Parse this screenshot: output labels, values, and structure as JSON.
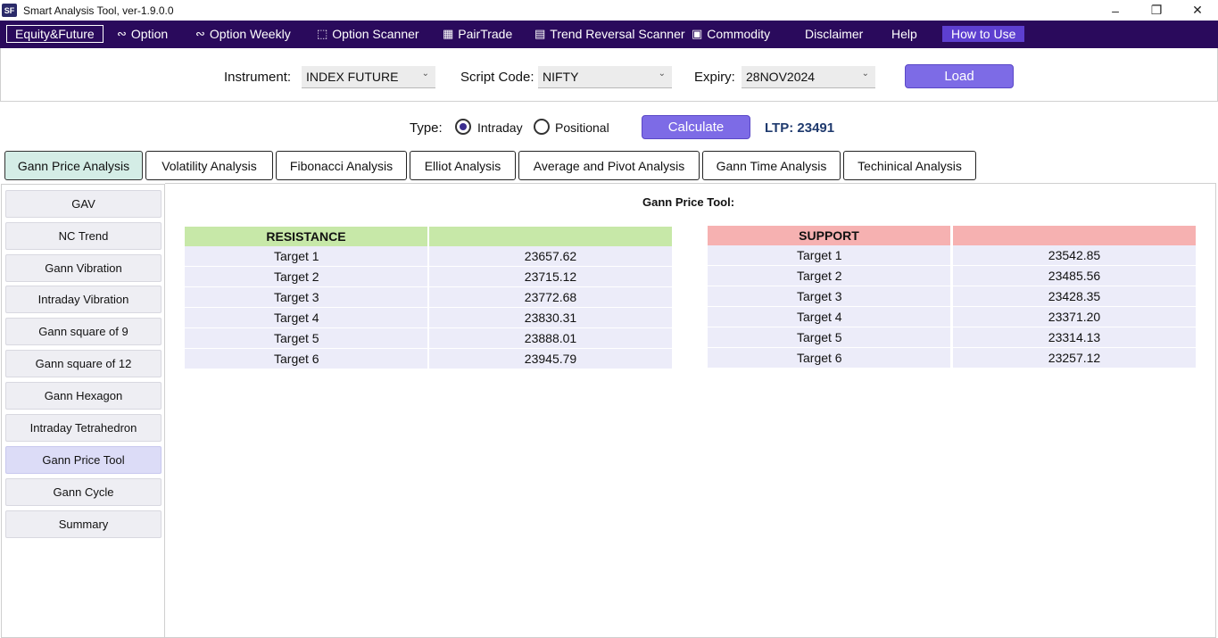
{
  "window": {
    "logo": "SF",
    "title": "Smart Analysis Tool, ver-1.9.0.0"
  },
  "menu": [
    {
      "label": "Equity&Future",
      "icon": ""
    },
    {
      "label": "Option",
      "icon": "chart-icon"
    },
    {
      "label": "Option Weekly",
      "icon": "chart-icon"
    },
    {
      "label": "Option Scanner",
      "icon": "scanner-icon"
    },
    {
      "label": "PairTrade",
      "icon": "pair-icon"
    },
    {
      "label": "Trend Reversal Scanner",
      "icon": "document-icon"
    },
    {
      "label": "Commodity",
      "icon": "fuel-icon"
    },
    {
      "label": "Disclaimer",
      "icon": ""
    },
    {
      "label": "Help",
      "icon": ""
    },
    {
      "label": "How to Use",
      "icon": ""
    }
  ],
  "instrument": {
    "label": "Instrument:",
    "value": "INDEX FUTURE",
    "script_label": "Script Code:",
    "script_value": "NIFTY",
    "expiry_label": "Expiry:",
    "expiry_value": "28NOV2024",
    "load_label": "Load"
  },
  "type_row": {
    "label": "Type:",
    "intraday": "Intraday",
    "positional": "Positional",
    "selected": "Intraday",
    "calculate_label": "Calculate",
    "ltp": "LTP: 23491"
  },
  "tabs": [
    "Gann Price Analysis",
    "Volatility Analysis",
    "Fibonacci Analysis",
    "Elliot Analysis",
    "Average and Pivot Analysis",
    "Gann Time Analysis",
    "Techinical Analysis"
  ],
  "side_items": [
    "GAV",
    "NC Trend",
    "Gann Vibration",
    "Intraday Vibration",
    "Gann square of 9",
    "Gann square of 12",
    "Gann Hexagon",
    "Intraday Tetrahedron",
    "Gann Price Tool",
    "Gann Cycle",
    "Summary"
  ],
  "main": {
    "title": "Gann Price Tool:",
    "resistance": {
      "header": "RESISTANCE",
      "header2": "",
      "rows": [
        {
          "label": "Target 1",
          "value": "23657.62"
        },
        {
          "label": "Target 2",
          "value": "23715.12"
        },
        {
          "label": "Target 3",
          "value": "23772.68"
        },
        {
          "label": "Target 4",
          "value": "23830.31"
        },
        {
          "label": "Target 5",
          "value": "23888.01"
        },
        {
          "label": "Target 6",
          "value": "23945.79"
        }
      ]
    },
    "support": {
      "header": "SUPPORT",
      "header2": "",
      "rows": [
        {
          "label": "Target 1",
          "value": "23542.85"
        },
        {
          "label": "Target 2",
          "value": "23485.56"
        },
        {
          "label": "Target 3",
          "value": "23428.35"
        },
        {
          "label": "Target 4",
          "value": "23371.20"
        },
        {
          "label": "Target 5",
          "value": "23314.13"
        },
        {
          "label": "Target 6",
          "value": "23257.12"
        }
      ]
    }
  },
  "colors": {
    "menubar": "#2a0a5c",
    "button": "#7d6be6",
    "resistance_header": "#c7e8a8",
    "support_header": "#f6b1b1",
    "row": "#ececf9",
    "active_tab": "#d4ede6"
  }
}
